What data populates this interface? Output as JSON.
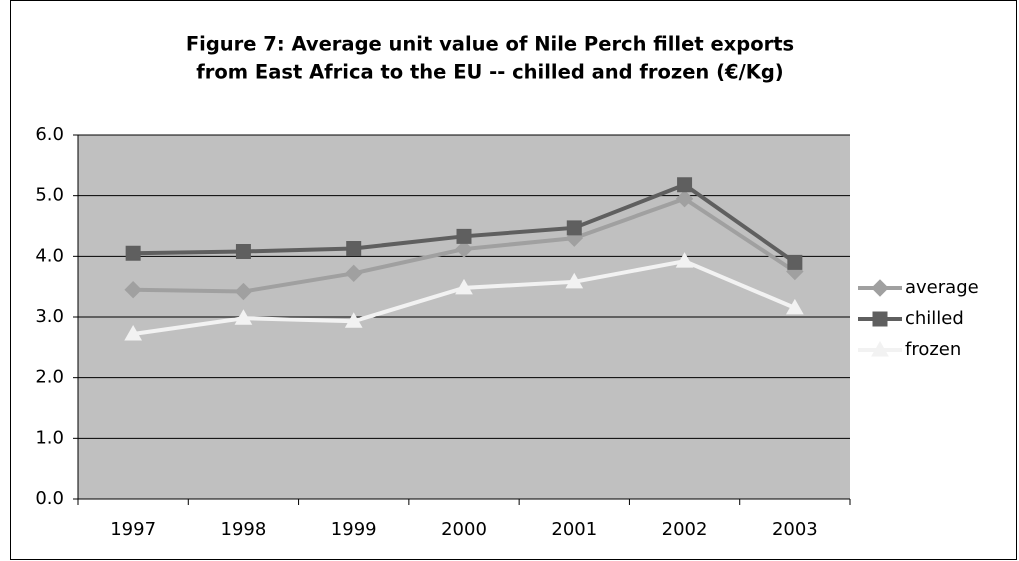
{
  "chart_data": {
    "type": "line",
    "title": "Figure 7: Average unit value of Nile Perch fillet exports",
    "subtitle": "from East Africa to the EU -- chilled and frozen (€/Kg)",
    "categories": [
      "1997",
      "1998",
      "1999",
      "2000",
      "2001",
      "2002",
      "2003"
    ],
    "series": [
      {
        "name": "average",
        "color": "#a0a0a0",
        "marker": "diamond",
        "values": [
          3.45,
          3.42,
          3.72,
          4.12,
          4.3,
          4.95,
          3.75
        ]
      },
      {
        "name": "chilled",
        "color": "#5f5f5f",
        "marker": "square",
        "values": [
          4.05,
          4.08,
          4.13,
          4.33,
          4.47,
          5.18,
          3.9
        ]
      },
      {
        "name": "frozen",
        "color": "#f2f2f2",
        "marker": "triangle",
        "values": [
          2.72,
          2.98,
          2.93,
          3.48,
          3.58,
          3.92,
          3.15
        ]
      }
    ],
    "ylim": [
      0,
      6
    ],
    "yticks": [
      {
        "value": 0,
        "label": "0.0"
      },
      {
        "value": 1,
        "label": "1.0"
      },
      {
        "value": 2,
        "label": "2.0"
      },
      {
        "value": 3,
        "label": "3.0"
      },
      {
        "value": 4,
        "label": "4.0"
      },
      {
        "value": 5,
        "label": "5.0"
      },
      {
        "value": 6,
        "label": "6.0"
      }
    ],
    "grid": true,
    "legend": "right"
  }
}
